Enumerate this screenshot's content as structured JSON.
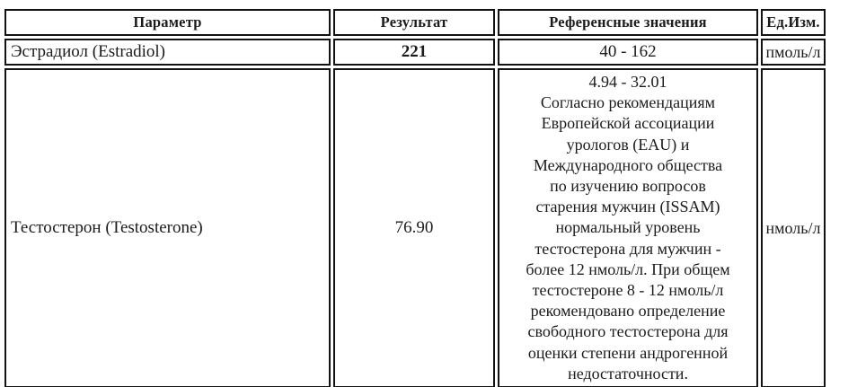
{
  "table": {
    "columns": {
      "parameter": "Параметр",
      "result": "Результат",
      "reference": "Референсные значения",
      "unit": "Ед.Изм."
    },
    "rows": [
      {
        "parameter": "Эстрадиол (Estradiol)",
        "result": "221",
        "reference": "40 - 162",
        "unit": "пмоль/л"
      },
      {
        "parameter": "Тестостерон (Testosterone)",
        "result": "76.90",
        "reference": "4.94 - 32.01\nСогласно рекомендациям\nЕвропейской ассоциации\nурологов (EAU) и\nМеждународного общества\nпо изучению вопросов\nстарения мужчин (ISSAM)\nнормальный уровень\nтестостерона для мужчин -\nболее 12 нмоль/л. При общем\nтестостероне 8 - 12 нмоль/л\nрекомендовано определение\nсвободного тестостерона для\nоценки степени андрогенной\nнедостаточности.",
        "unit": "нмоль/л"
      }
    ]
  }
}
